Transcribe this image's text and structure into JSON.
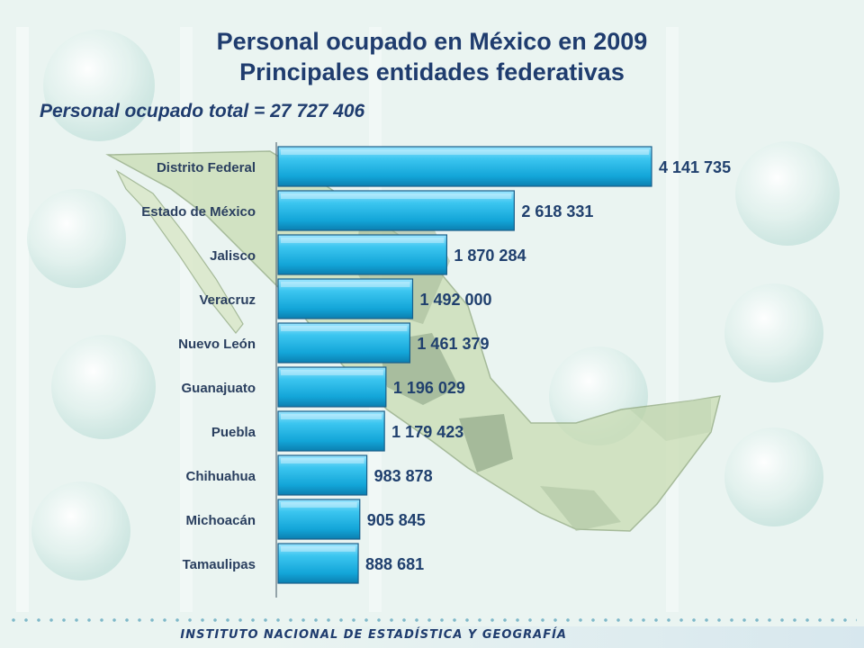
{
  "title_line1": "Personal ocupado en México en 2009",
  "title_line2": "Principales entidades federativas",
  "subtitle": "Personal ocupado total = 27 727 406",
  "footer": "INSTITUTO NACIONAL DE ESTADÍSTICA Y GEOGRAFÍA",
  "colors": {
    "title": "#1f3c6e",
    "bar_fill": "#1fb0e0",
    "bar_highlight": "#9ee6ff",
    "bar_edge": "#1a5f8a",
    "label": "#2a3f5f",
    "value": "#20406e"
  },
  "chart_data": {
    "type": "bar",
    "orientation": "horizontal",
    "categories": [
      "Distrito Federal",
      "Estado de México",
      "Jalisco",
      "Veracruz",
      "Nuevo León",
      "Guanajuato",
      "Puebla",
      "Chihuahua",
      "Michoacán",
      "Tamaulipas"
    ],
    "values": [
      4141735,
      2618331,
      1870284,
      1492000,
      1461379,
      1196029,
      1179423,
      983878,
      905845,
      888681
    ],
    "value_labels": [
      "4 141 735",
      "2 618 331",
      "1 870 284",
      "1 492 000",
      "1 461 379",
      "1 196 029",
      "1 179 423",
      "983 878",
      "905 845",
      "888 681"
    ],
    "xlim": [
      0,
      4141735
    ],
    "grid": false,
    "legend": "none"
  }
}
